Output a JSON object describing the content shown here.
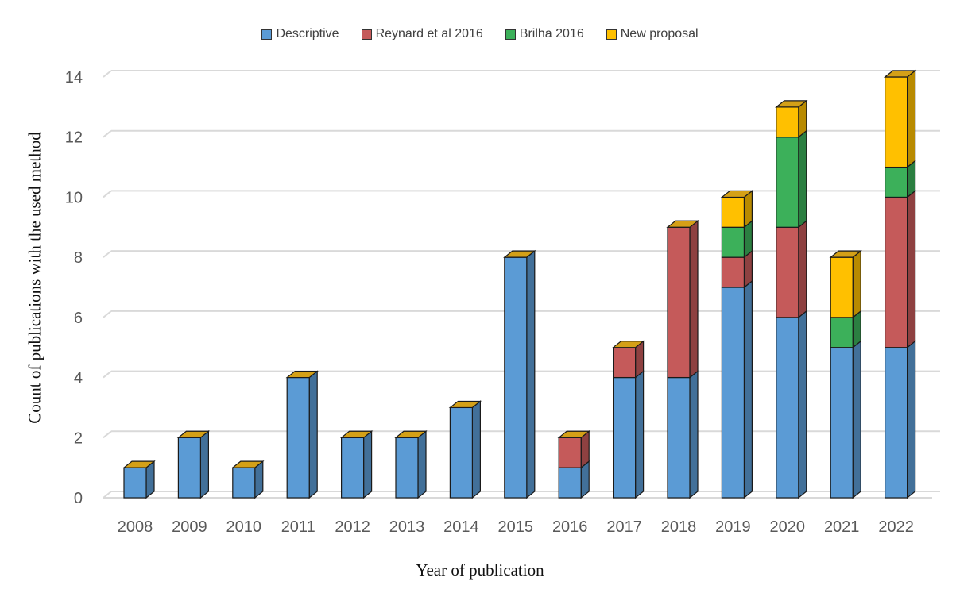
{
  "chart_data": {
    "type": "bar",
    "stacked": true,
    "three_d": true,
    "xlabel": "Year of publication",
    "ylabel": "Count of publications with the used method",
    "ylim": [
      0,
      14
    ],
    "yticks": [
      0,
      2,
      4,
      6,
      8,
      10,
      12,
      14
    ],
    "grid": true,
    "legend_position": "top",
    "categories": [
      "2008",
      "2009",
      "2010",
      "2011",
      "2012",
      "2013",
      "2014",
      "2015",
      "2016",
      "2017",
      "2018",
      "2019",
      "2020",
      "2021",
      "2022"
    ],
    "series": [
      {
        "name": "Descriptive",
        "color": "#5b9bd5",
        "values": [
          1,
          2,
          1,
          4,
          2,
          2,
          3,
          8,
          1,
          4,
          4,
          7,
          6,
          5,
          5
        ]
      },
      {
        "name": "Reynard et al 2016",
        "color": "#c55a5a",
        "values": [
          0,
          0,
          0,
          0,
          0,
          0,
          0,
          0,
          1,
          1,
          5,
          1,
          3,
          0,
          5
        ]
      },
      {
        "name": "Brilha 2016",
        "color": "#3cb05a",
        "values": [
          0,
          0,
          0,
          0,
          0,
          0,
          0,
          0,
          0,
          0,
          0,
          1,
          3,
          1,
          1
        ]
      },
      {
        "name": "New proposal",
        "color": "#ffc000",
        "values": [
          0,
          0,
          0,
          0,
          0,
          0,
          0,
          0,
          0,
          0,
          0,
          1,
          1,
          2,
          3
        ]
      }
    ]
  }
}
